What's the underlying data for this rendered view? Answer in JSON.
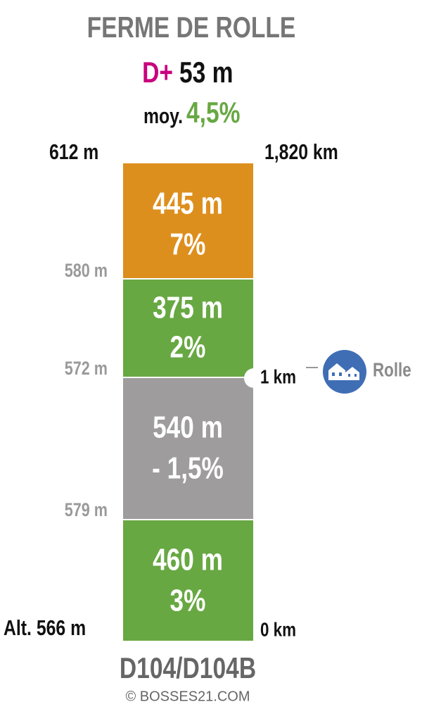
{
  "header": {
    "title": "FERME DE ROLLE",
    "gain_label": "D+",
    "gain": "53 m",
    "average_label": "moy.",
    "average": "4,5%"
  },
  "summit": {
    "altitude": "612 m",
    "distance": "1,820 km"
  },
  "segments": [
    {
      "length": "445 m",
      "grade": "7%"
    },
    {
      "length": "375 m",
      "grade": "2%"
    },
    {
      "length": "540 m",
      "grade": "- 1,5%"
    },
    {
      "length": "460 m",
      "grade": "3%"
    }
  ],
  "altitudes": [
    "580 m",
    "572 m",
    "579 m"
  ],
  "start": {
    "altitude": "Alt. 566 m",
    "distance": "0 km"
  },
  "landmark": {
    "distance": "1 km",
    "name": "Rolle"
  },
  "footer": {
    "road": "D104/D104B",
    "copyright": "© BOSSES21.COM"
  }
}
